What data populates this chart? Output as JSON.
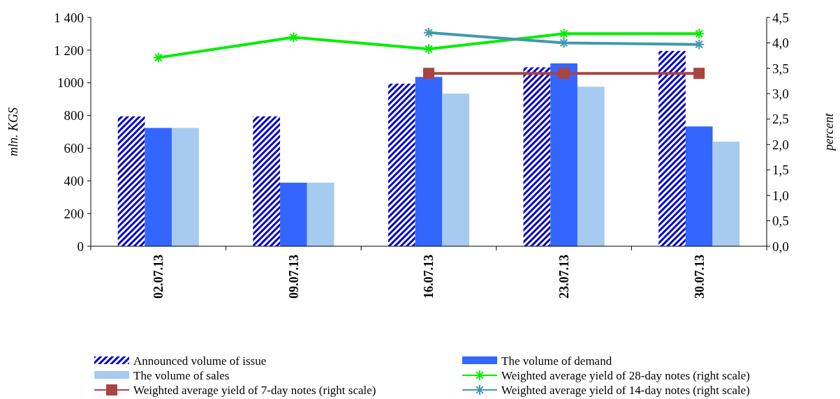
{
  "chart_data": {
    "type": "bar",
    "categories": [
      "02.07.13",
      "09.07.13",
      "16.07.13",
      "23.07.13",
      "30.07.13"
    ],
    "ylabel": "mln. KGS",
    "y2label": "percent",
    "ylim": [
      0,
      1400
    ],
    "yticks": [
      0,
      200,
      400,
      600,
      800,
      1000,
      {
        "value": 1200,
        "label": "1 200"
      },
      {
        "value": 1400,
        "label": "1 400"
      }
    ],
    "y2lim": [
      0,
      4.5
    ],
    "y2ticks": [
      {
        "value": 0,
        "label": "0,0"
      },
      {
        "value": 0.5,
        "label": "0,5"
      },
      {
        "value": 1,
        "label": "1,0"
      },
      {
        "value": 1.5,
        "label": "1,5"
      },
      {
        "value": 2,
        "label": "2,0"
      },
      {
        "value": 2.5,
        "label": "2,5"
      },
      {
        "value": 3,
        "label": "3,0"
      },
      {
        "value": 3.5,
        "label": "3,5"
      },
      {
        "value": 4,
        "label": "4,0"
      },
      {
        "value": 4.5,
        "label": "4,5"
      }
    ],
    "grid": false,
    "legend": "bottom",
    "series": [
      {
        "name": "Announced volume of issue",
        "color": "#0000cc",
        "values": [
          795,
          795,
          995,
          1095,
          1195
        ]
      },
      {
        "name": "The volume of demand",
        "color": "#3366ff",
        "values": [
          724,
          389,
          1036,
          1119,
          733
        ]
      },
      {
        "name": "The volume of sales",
        "color": "#a6caf0",
        "values": [
          724,
          389,
          934,
          976,
          640
        ]
      },
      {
        "name": "Weighted average yield of 28-day notes (right scale)",
        "type": "line",
        "axis": "y2",
        "color": "#00ee00",
        "marker": "cross",
        "values": [
          3.71,
          4.11,
          3.88,
          4.18,
          4.18
        ]
      },
      {
        "name": "Weighted average yield of 7-day notes (right scale)",
        "type": "line",
        "axis": "y2",
        "color": "#aa4443",
        "marker": "square",
        "values": [
          null,
          null,
          3.4,
          3.4,
          3.4
        ]
      },
      {
        "name": "Weighted average yield of 14-day notes (right scale)",
        "type": "line",
        "axis": "y2",
        "color": "#4198af",
        "marker": "cross",
        "values": [
          null,
          null,
          4.2,
          4.0,
          3.97
        ]
      }
    ]
  }
}
